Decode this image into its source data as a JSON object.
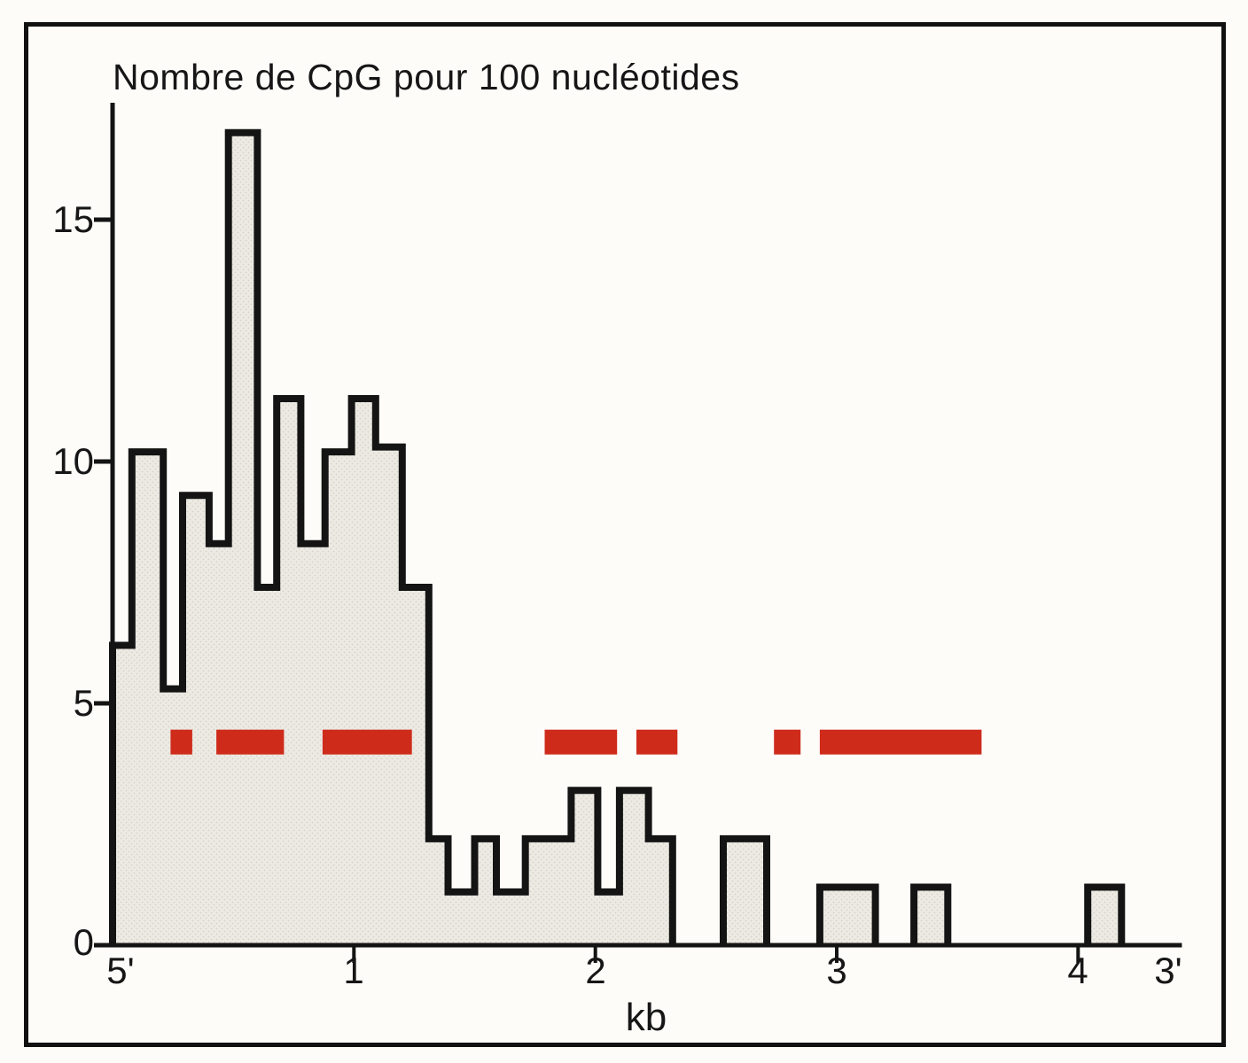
{
  "chart_data": {
    "type": "bar",
    "title": "Nombre de CpG pour 100 nucléotides",
    "xlabel": "kb",
    "ylabel": "",
    "x_axis": {
      "start_label": "5'",
      "end_label": "3'",
      "ticks": [
        1,
        2,
        3,
        4
      ],
      "range_kb": [
        0,
        4.43
      ],
      "grid": false
    },
    "y_axis": {
      "ticks": [
        0,
        5,
        10,
        15
      ],
      "range": [
        0,
        17.4
      ],
      "grid": false
    },
    "bin_width_kb": 0.1,
    "islands": [
      {
        "bins": [
          {
            "from": 0.0,
            "to": 0.08,
            "v": 6.2
          },
          {
            "from": 0.08,
            "to": 0.21,
            "v": 10.2
          },
          {
            "from": 0.21,
            "to": 0.29,
            "v": 5.3
          },
          {
            "from": 0.29,
            "to": 0.4,
            "v": 9.3
          },
          {
            "from": 0.4,
            "to": 0.48,
            "v": 8.3
          },
          {
            "from": 0.48,
            "to": 0.6,
            "v": 16.8
          },
          {
            "from": 0.6,
            "to": 0.68,
            "v": 7.4
          },
          {
            "from": 0.68,
            "to": 0.78,
            "v": 11.3
          },
          {
            "from": 0.78,
            "to": 0.88,
            "v": 8.3
          },
          {
            "from": 0.88,
            "to": 0.99,
            "v": 10.2
          },
          {
            "from": 0.99,
            "to": 1.09,
            "v": 11.3
          },
          {
            "from": 1.09,
            "to": 1.2,
            "v": 10.3
          },
          {
            "from": 1.2,
            "to": 1.31,
            "v": 7.4
          },
          {
            "from": 1.31,
            "to": 1.39,
            "v": 2.2
          },
          {
            "from": 1.39,
            "to": 1.5,
            "v": 1.1
          },
          {
            "from": 1.5,
            "to": 1.59,
            "v": 2.2
          },
          {
            "from": 1.59,
            "to": 1.71,
            "v": 1.1
          },
          {
            "from": 1.71,
            "to": 1.9,
            "v": 2.2
          },
          {
            "from": 1.9,
            "to": 2.01,
            "v": 3.2
          },
          {
            "from": 2.01,
            "to": 2.1,
            "v": 1.1
          },
          {
            "from": 2.1,
            "to": 2.22,
            "v": 3.2
          },
          {
            "from": 2.22,
            "to": 2.32,
            "v": 2.2
          }
        ]
      },
      {
        "bins": [
          {
            "from": 2.53,
            "to": 2.71,
            "v": 2.2
          }
        ]
      },
      {
        "bins": [
          {
            "from": 2.93,
            "to": 3.16,
            "v": 1.2
          }
        ]
      },
      {
        "bins": [
          {
            "from": 3.32,
            "to": 3.46,
            "v": 1.2
          }
        ]
      },
      {
        "bins": [
          {
            "from": 4.04,
            "to": 4.18,
            "v": 1.2
          }
        ]
      }
    ],
    "red_segments_kb": [
      {
        "from": 0.24,
        "to": 0.33
      },
      {
        "from": 0.43,
        "to": 0.71
      },
      {
        "from": 0.87,
        "to": 1.24
      },
      {
        "from": 1.79,
        "to": 2.09
      },
      {
        "from": 2.17,
        "to": 2.34
      },
      {
        "from": 2.74,
        "to": 2.85
      },
      {
        "from": 2.93,
        "to": 3.6
      }
    ],
    "red_segments_level": 4.2
  },
  "colors": {
    "ink": "#141414",
    "histogram_fill": "#eceae3",
    "histogram_dot": "#d6d3c9",
    "red_marker": "#cf2b1b",
    "paper": "#fdfcf9"
  }
}
